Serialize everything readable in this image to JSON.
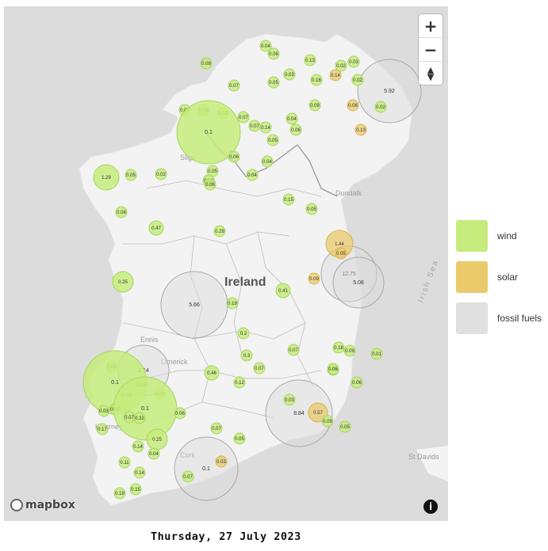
{
  "map": {
    "country_label": "Ireland",
    "place_labels": [
      "Sligo",
      "Dundalk",
      "Ennis",
      "Limerick",
      "Killarney",
      "Cork",
      "St Davids",
      "Irish Sea"
    ],
    "attribution": "mapbox",
    "controls": {
      "zoom_in": "+",
      "zoom_out": "−"
    }
  },
  "legend": [
    {
      "label": "wind",
      "color": "#c6ec7d"
    },
    {
      "label": "solar",
      "color": "#ebca6c"
    },
    {
      "label": "fossil fuels",
      "color": "#e0e0e0"
    }
  ],
  "date": "Thursday, 27 July 2023",
  "markers": [
    {
      "type": "wind",
      "value": "0.04"
    },
    {
      "type": "wind",
      "value": "0.06"
    },
    {
      "type": "wind",
      "value": "0.09"
    },
    {
      "type": "wind",
      "value": "0.13"
    },
    {
      "type": "wind",
      "value": "0.02"
    },
    {
      "type": "wind",
      "value": "0.03"
    },
    {
      "type": "solar",
      "value": "0.14"
    },
    {
      "type": "wind",
      "value": "0.02"
    },
    {
      "type": "wind",
      "value": "0.07"
    },
    {
      "type": "wind",
      "value": "0.05"
    },
    {
      "type": "wind",
      "value": "0.03"
    },
    {
      "type": "wind",
      "value": "0.16"
    },
    {
      "type": "fossil",
      "value": "5.92"
    },
    {
      "type": "wind",
      "value": "0.02"
    },
    {
      "type": "solar",
      "value": "0.08"
    },
    {
      "type": "wind",
      "value": "0.07"
    },
    {
      "type": "wind",
      "value": "0.02"
    },
    {
      "type": "wind",
      "value": "0.02"
    },
    {
      "type": "wind",
      "value": "0.07"
    },
    {
      "type": "wind",
      "value": "0.09"
    },
    {
      "type": "wind",
      "value": "0.1"
    },
    {
      "type": "wind",
      "value": "0.07"
    },
    {
      "type": "wind",
      "value": "0.14"
    },
    {
      "type": "wind",
      "value": "0.04"
    },
    {
      "type": "wind",
      "value": "0.06"
    },
    {
      "type": "solar",
      "value": "0.13"
    },
    {
      "type": "wind",
      "value": "0.05"
    },
    {
      "type": "wind",
      "value": "0.06"
    },
    {
      "type": "wind",
      "value": "0.04"
    },
    {
      "type": "wind",
      "value": "1.29"
    },
    {
      "type": "wind",
      "value": "0.05"
    },
    {
      "type": "wind",
      "value": "0.02"
    },
    {
      "type": "wind",
      "value": "0.05"
    },
    {
      "type": "wind",
      "value": "0.06"
    },
    {
      "type": "wind",
      "value": "0.04"
    },
    {
      "type": "wind",
      "value": "0.06"
    },
    {
      "type": "wind",
      "value": "0.15"
    },
    {
      "type": "wind",
      "value": "0.08"
    },
    {
      "type": "wind",
      "value": "0.05"
    },
    {
      "type": "wind",
      "value": "0.47"
    },
    {
      "type": "wind",
      "value": "0.29"
    },
    {
      "type": "solar",
      "value": "1.44"
    },
    {
      "type": "solar",
      "value": "0.05"
    },
    {
      "type": "wind",
      "value": "0.25"
    },
    {
      "type": "fossil",
      "value": "12.75"
    },
    {
      "type": "fossil",
      "value": "5.08"
    },
    {
      "type": "solar",
      "value": "0.09"
    },
    {
      "type": "fossil",
      "value": "5.66"
    },
    {
      "type": "wind",
      "value": "0.41"
    },
    {
      "type": "wind",
      "value": "0.19"
    },
    {
      "type": "wind",
      "value": "0.2"
    },
    {
      "type": "wind",
      "value": "0.18"
    },
    {
      "type": "wind",
      "value": "0.09"
    },
    {
      "type": "wind",
      "value": "0.3"
    },
    {
      "type": "wind",
      "value": "0.07"
    },
    {
      "type": "wind",
      "value": "0.01"
    },
    {
      "type": "wind",
      "value": "0.07"
    },
    {
      "type": "wind",
      "value": "0.03"
    },
    {
      "type": "fossil",
      "value": "2.14"
    },
    {
      "type": "wind",
      "value": "0.1"
    },
    {
      "type": "wind",
      "value": "0.08"
    },
    {
      "type": "wind",
      "value": "0.46"
    },
    {
      "type": "wind",
      "value": "0.07"
    },
    {
      "type": "wind",
      "value": "0.06"
    },
    {
      "type": "wind",
      "value": "0.12"
    },
    {
      "type": "wind",
      "value": "0.06"
    },
    {
      "type": "wind",
      "value": "0.13"
    },
    {
      "type": "wind",
      "value": "0.07"
    },
    {
      "type": "wind",
      "value": "0.03"
    },
    {
      "type": "fossil",
      "value": "8.84"
    },
    {
      "type": "wind",
      "value": "0.03"
    },
    {
      "type": "wind",
      "value": "0.08"
    },
    {
      "type": "wind",
      "value": "0.1"
    },
    {
      "type": "wind",
      "value": "0.07"
    },
    {
      "type": "wind",
      "value": "0.32"
    },
    {
      "type": "wind",
      "value": "0.06"
    },
    {
      "type": "solar",
      "value": "0.57"
    },
    {
      "type": "wind",
      "value": "0.09"
    },
    {
      "type": "wind",
      "value": "0.05"
    },
    {
      "type": "wind",
      "value": "0.17"
    },
    {
      "type": "wind",
      "value": "0.07"
    },
    {
      "type": "wind",
      "value": "0.05"
    },
    {
      "type": "wind",
      "value": "0.25"
    },
    {
      "type": "wind",
      "value": "0.14"
    },
    {
      "type": "wind",
      "value": "0.04"
    },
    {
      "type": "wind",
      "value": "0.11"
    },
    {
      "type": "fossil",
      "value": "0.1"
    },
    {
      "type": "solar",
      "value": "0.03"
    },
    {
      "type": "wind",
      "value": "0.14"
    },
    {
      "type": "wind",
      "value": "0.07"
    },
    {
      "type": "wind",
      "value": "0.15"
    },
    {
      "type": "wind",
      "value": "0.19"
    }
  ]
}
